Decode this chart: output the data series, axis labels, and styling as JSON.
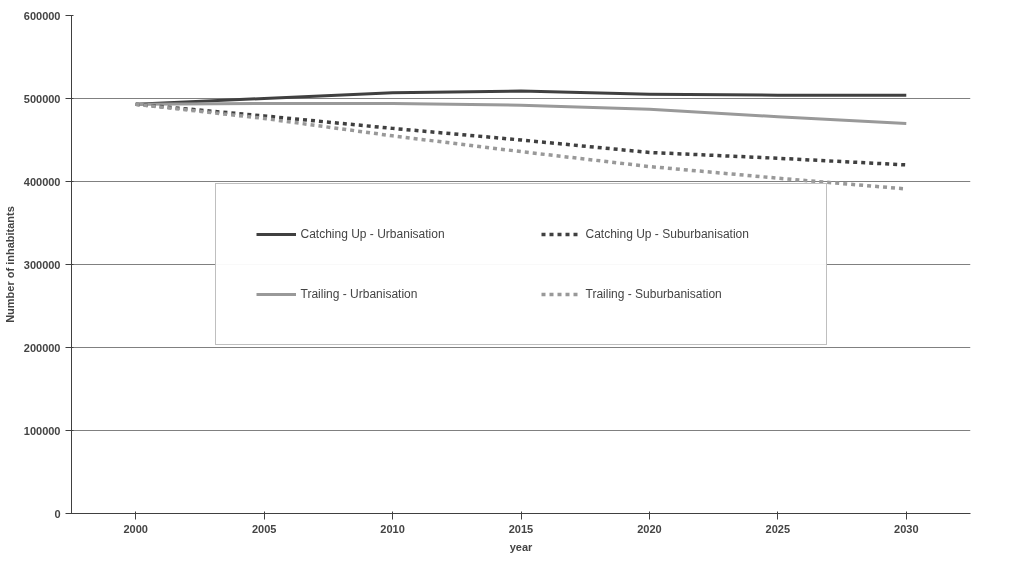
{
  "chart_data": {
    "type": "line",
    "xlabel": "year",
    "ylabel": "Number of inhabitants",
    "categories": [
      "2000",
      "2005",
      "2010",
      "2015",
      "2020",
      "2025",
      "2030"
    ],
    "ylim": [
      0,
      600000
    ],
    "yticks": [
      0,
      100000,
      200000,
      300000,
      400000,
      500000,
      600000
    ],
    "grid": "y",
    "legend": "center",
    "marker": "none",
    "series": [
      {
        "name": "Catching Up - Urbanisation",
        "color": "#404040",
        "line_style": "solid",
        "values": [
          493000,
          500000,
          507000,
          509000,
          505000,
          504000,
          504000
        ]
      },
      {
        "name": "Trailing - Urbanisation",
        "color": "#999999",
        "line_style": "solid",
        "values": [
          493000,
          494000,
          494000,
          492000,
          487000,
          478000,
          470000
        ]
      },
      {
        "name": "Catching Up - Suburbanisation",
        "color": "#404040",
        "line_style": "dashed",
        "values": [
          493000,
          479000,
          464000,
          450000,
          435000,
          428000,
          420000
        ]
      },
      {
        "name": "Trailing - Suburbanisation",
        "color": "#999999",
        "line_style": "dashed",
        "values": [
          493000,
          476000,
          455000,
          436000,
          418000,
          404000,
          391000
        ]
      }
    ]
  }
}
